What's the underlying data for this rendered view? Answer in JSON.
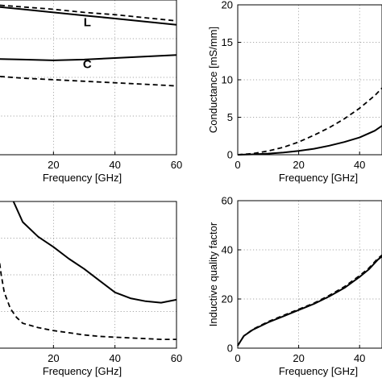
{
  "chart_data": [
    {
      "type": "line",
      "xlabel": "Frequency [GHz]",
      "ylabel": "",
      "xlim": [
        0,
        60
      ],
      "ylim": [
        0,
        1
      ],
      "xticks": [
        "20",
        "40",
        "60"
      ],
      "yticks": [],
      "grid": true,
      "annotations": [
        {
          "text": "L",
          "x": 31,
          "y": 0.83
        },
        {
          "text": "C",
          "x": 31,
          "y": 0.56
        }
      ],
      "series": [
        {
          "style": "solid",
          "x": [
            0,
            10,
            20,
            30,
            40,
            50,
            60
          ],
          "y": [
            0.96,
            0.94,
            0.92,
            0.9,
            0.88,
            0.86,
            0.84
          ]
        },
        {
          "style": "dashed",
          "x": [
            0,
            10,
            20,
            30,
            40,
            50,
            60
          ],
          "y": [
            0.97,
            0.955,
            0.94,
            0.92,
            0.905,
            0.885,
            0.865
          ]
        },
        {
          "style": "solid",
          "x": [
            0,
            10,
            20,
            30,
            40,
            50,
            60
          ],
          "y": [
            0.62,
            0.615,
            0.61,
            0.615,
            0.625,
            0.635,
            0.645
          ]
        },
        {
          "style": "dashed",
          "x": [
            0,
            10,
            20,
            30,
            40,
            50,
            60
          ],
          "y": [
            0.51,
            0.495,
            0.485,
            0.475,
            0.465,
            0.455,
            0.445
          ]
        }
      ]
    },
    {
      "type": "line",
      "xlabel": "Frequency [GHz]",
      "ylabel": "Conductance [mS/mm]",
      "xlim": [
        0,
        50
      ],
      "ylim": [
        0,
        20
      ],
      "xticks": [
        "0",
        "20",
        "40"
      ],
      "yticks": [
        "0",
        "5",
        "10",
        "15",
        "20"
      ],
      "grid": true,
      "series": [
        {
          "style": "solid",
          "x": [
            0,
            5,
            10,
            15,
            20,
            25,
            30,
            35,
            40,
            45,
            50
          ],
          "y": [
            0,
            0.05,
            0.15,
            0.3,
            0.5,
            0.8,
            1.2,
            1.7,
            2.3,
            3.2,
            4.6
          ]
        },
        {
          "style": "dashed",
          "x": [
            0,
            5,
            10,
            15,
            20,
            25,
            30,
            35,
            40,
            45,
            50
          ],
          "y": [
            0,
            0.15,
            0.5,
            1.0,
            1.7,
            2.6,
            3.6,
            4.8,
            6.2,
            7.9,
            10.0
          ]
        }
      ]
    },
    {
      "type": "line",
      "xlabel": "Frequency [GHz]",
      "ylabel": "",
      "xlim": [
        0,
        60
      ],
      "ylim": [
        0,
        1
      ],
      "xticks": [
        "20",
        "40",
        "60"
      ],
      "yticks": [],
      "grid": true,
      "series": [
        {
          "style": "solid",
          "x": [
            7,
            10,
            15,
            20,
            25,
            30,
            35,
            40,
            45,
            50,
            55,
            60
          ],
          "y": [
            1.0,
            0.86,
            0.76,
            0.69,
            0.61,
            0.54,
            0.46,
            0.38,
            0.34,
            0.32,
            0.31,
            0.33
          ]
        },
        {
          "style": "dashed",
          "x": [
            0,
            1,
            2,
            3,
            4,
            6,
            8,
            10,
            15,
            20,
            25,
            30,
            35,
            40,
            45,
            50,
            55,
            60
          ],
          "y": [
            0.96,
            0.83,
            0.66,
            0.5,
            0.38,
            0.27,
            0.21,
            0.17,
            0.14,
            0.12,
            0.105,
            0.09,
            0.08,
            0.075,
            0.07,
            0.065,
            0.06,
            0.06
          ]
        }
      ]
    },
    {
      "type": "line",
      "xlabel": "Frequency [GHz]",
      "ylabel": "Inductive quality factor",
      "xlim": [
        0,
        50
      ],
      "ylim": [
        0,
        60
      ],
      "xticks": [
        "0",
        "20",
        "40"
      ],
      "yticks": [
        "0",
        "20",
        "40",
        "60"
      ],
      "grid": true,
      "series": [
        {
          "style": "solid",
          "x": [
            0,
            2,
            5,
            10,
            15,
            20,
            25,
            30,
            35,
            40,
            43,
            46,
            48,
            50
          ],
          "y": [
            1,
            5,
            7.5,
            10.5,
            13,
            15.5,
            18,
            21,
            24.5,
            29,
            32,
            36,
            38,
            42
          ]
        },
        {
          "style": "dashed",
          "x": [
            0,
            2,
            5,
            10,
            15,
            20,
            25,
            30,
            35,
            40,
            43,
            46,
            48,
            50
          ],
          "y": [
            1,
            5,
            7.7,
            10.8,
            13.3,
            15.8,
            18.3,
            21.4,
            25,
            29.5,
            32.5,
            36.5,
            38.5,
            41
          ]
        }
      ]
    }
  ]
}
